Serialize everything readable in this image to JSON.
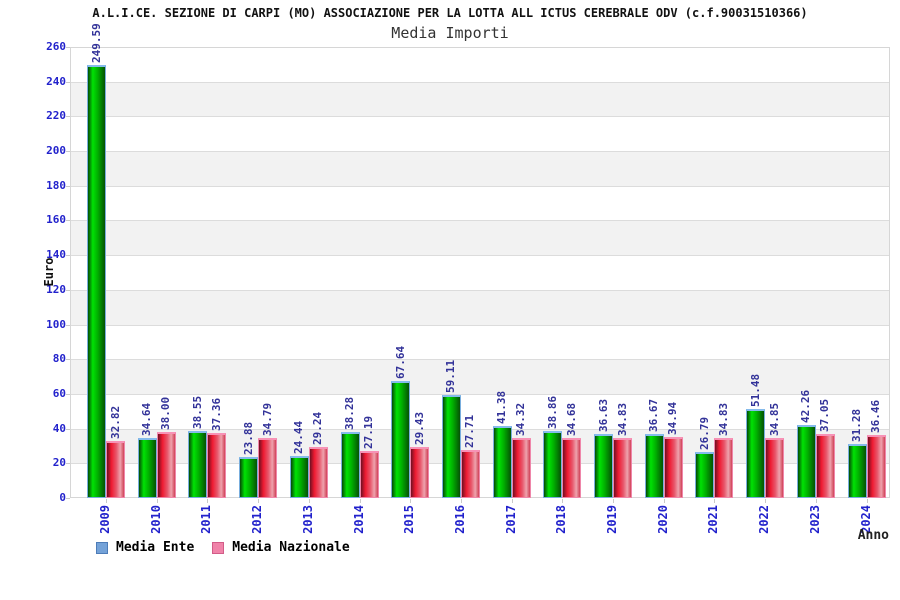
{
  "header": {
    "title": "A.L.I.CE. SEZIONE DI CARPI (MO) ASSOCIAZIONE PER LA LOTTA ALL ICTUS CEREBRALE ODV (c.f.90031510366)",
    "subtitle": "Media Importi"
  },
  "chart_data": {
    "type": "bar",
    "title": "Media Importi",
    "xlabel": "Anno",
    "ylabel": "Euro",
    "ylim": [
      0,
      260
    ],
    "ytick_step": 20,
    "yticks": [
      0,
      20,
      40,
      60,
      80,
      100,
      120,
      140,
      160,
      180,
      200,
      220,
      240,
      260
    ],
    "grid": "horizontal gridlines every 20 units with alternating white / light-gray bands",
    "legend_position": "bottom-left",
    "axis_label_color": "#2222cc",
    "value_label_color": "#333399",
    "band_gray": "#f2f2f2",
    "categories": [
      "2009",
      "2010",
      "2011",
      "2012",
      "2013",
      "2014",
      "2015",
      "2016",
      "2017",
      "2018",
      "2019",
      "2020",
      "2021",
      "2022",
      "2023",
      "2024"
    ],
    "series": [
      {
        "name": "Media Ente",
        "legend_fill": "#74a2d8",
        "legend_border": "#4d7cb8",
        "bar_gradient": [
          "#064906 0%",
          "#00e204 28%",
          "#00b400 55%",
          "#055205 100%"
        ],
        "bar_outline": "#79aede",
        "bar_cap": "#85bbec",
        "values": [
          249.59,
          34.64,
          38.55,
          23.88,
          24.44,
          38.28,
          67.64,
          59.11,
          41.38,
          38.86,
          36.63,
          36.67,
          26.79,
          51.48,
          42.26,
          31.28
        ],
        "value_labels": [
          "249.59",
          "34.64",
          "38.55",
          "23.88",
          "24.44",
          "38.28",
          "67.64",
          "59.11",
          "41.38",
          "38.86",
          "36.63",
          "36.67",
          "26.79",
          "51.48",
          "42.26",
          "31.28"
        ]
      },
      {
        "name": "Media Nazionale",
        "legend_fill": "#f083a9",
        "legend_border": "#d25c88",
        "bar_gradient": [
          "#701022 0%",
          "#ef1a31 26%",
          "#e8576b 55%",
          "#eea2ad 78%",
          "#d04257 100%"
        ],
        "bar_outline": "#ef86aa",
        "bar_cap": "#f792b6",
        "values": [
          32.82,
          38.0,
          37.36,
          34.79,
          29.24,
          27.19,
          29.43,
          27.71,
          34.32,
          34.68,
          34.83,
          34.94,
          34.83,
          34.85,
          37.05,
          36.46
        ],
        "value_labels": [
          "32.82",
          "38.00",
          "37.36",
          "34.79",
          "29.24",
          "27.19",
          "29.43",
          "27.71",
          "34.32",
          "34.68",
          "34.83",
          "34.94",
          "34.83",
          "34.85",
          "37.05",
          "36.46"
        ]
      }
    ]
  }
}
